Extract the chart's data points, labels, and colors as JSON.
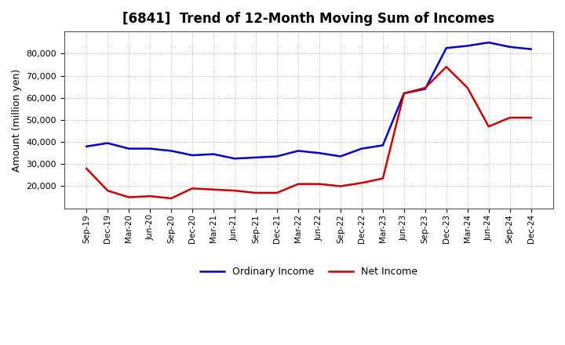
{
  "title": "[6841]  Trend of 12-Month Moving Sum of Incomes",
  "ylabel": "Amount (million yen)",
  "background_color": "#ffffff",
  "grid_color": "#aaaaaa",
  "x_labels": [
    "Sep-19",
    "Dec-19",
    "Mar-20",
    "Jun-20",
    "Sep-20",
    "Dec-20",
    "Mar-21",
    "Jun-21",
    "Sep-21",
    "Dec-21",
    "Mar-22",
    "Jun-22",
    "Sep-22",
    "Dec-22",
    "Mar-23",
    "Jun-23",
    "Sep-23",
    "Dec-23",
    "Mar-24",
    "Jun-24",
    "Sep-24",
    "Dec-24"
  ],
  "ordinary_income": [
    38000,
    39500,
    37000,
    37000,
    36000,
    34000,
    34500,
    32500,
    33000,
    33500,
    36000,
    35000,
    33500,
    37000,
    38500,
    62000,
    64000,
    82500,
    83500,
    85000,
    83000,
    82000
  ],
  "net_income": [
    28000,
    18000,
    15000,
    15500,
    14500,
    19000,
    18500,
    18000,
    17000,
    17000,
    21000,
    21000,
    20000,
    21500,
    23500,
    62000,
    64500,
    74000,
    64500,
    47000,
    51000,
    51000
  ],
  "ordinary_color": "#0000cc",
  "net_color": "#cc0000",
  "line_width": 1.8,
  "ylim": [
    10000,
    90000
  ],
  "yticks": [
    20000,
    30000,
    40000,
    50000,
    60000,
    70000,
    80000
  ],
  "legend_labels": [
    "Ordinary Income",
    "Net Income"
  ],
  "title_fontsize": 12,
  "axis_label_fontsize": 9,
  "tick_fontsize": 8,
  "xtick_fontsize": 7.5
}
